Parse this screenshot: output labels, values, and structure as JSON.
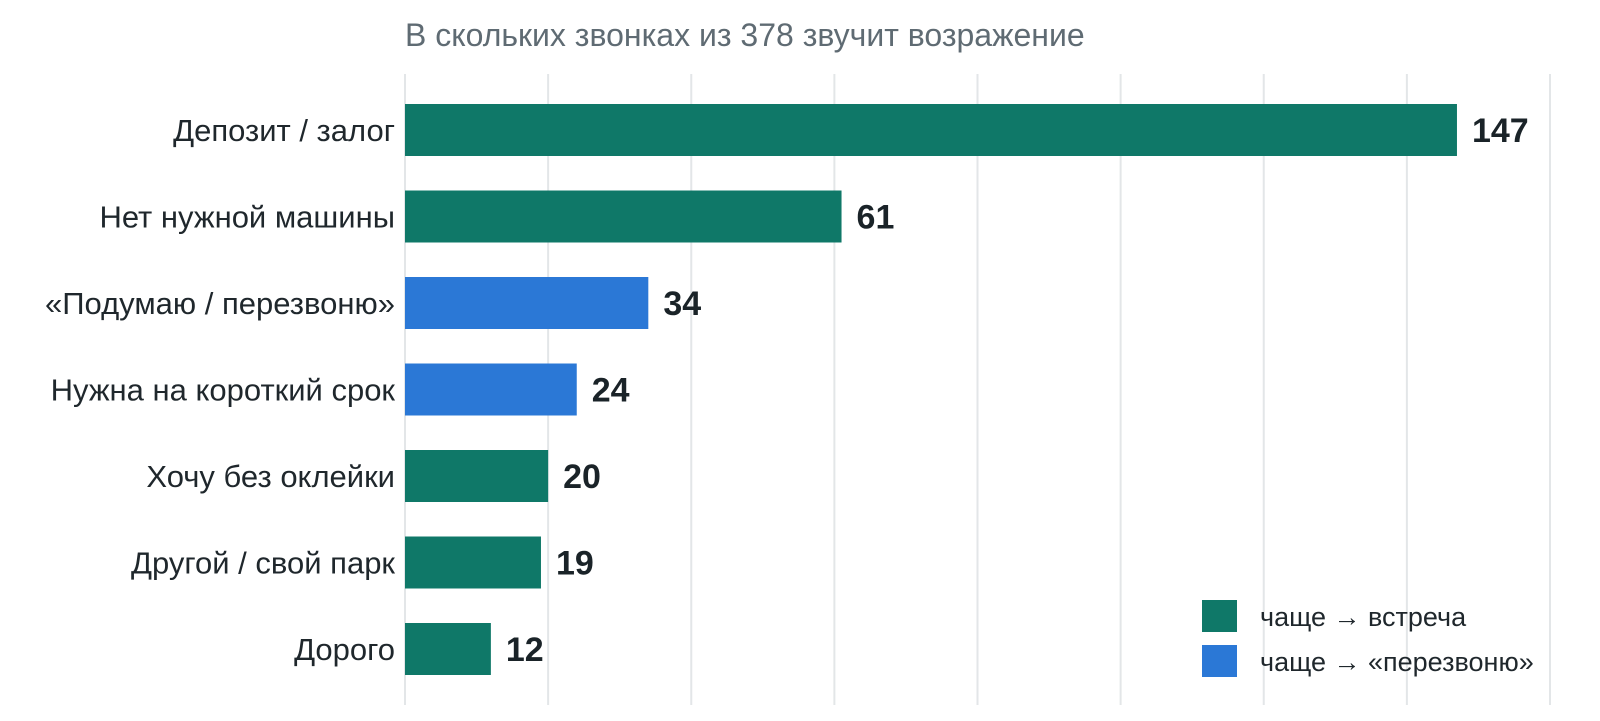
{
  "chart_data": {
    "type": "bar",
    "orientation": "horizontal",
    "title": "В скольких звонках из 378 звучит возражение",
    "xlabel": "",
    "ylabel": "",
    "xlim": [
      0,
      160
    ],
    "grid": true,
    "categories": [
      "Депозит / залог",
      "Нет нужной машины",
      "«Подумаю / перезвоню»",
      "Нужна на короткий срок",
      "Хочу без оклейки",
      "Другой / свой парк",
      "Дорого"
    ],
    "values": [
      147,
      61,
      34,
      24,
      20,
      19,
      12
    ],
    "groups": [
      "meeting",
      "meeting",
      "callback",
      "callback",
      "meeting",
      "meeting",
      "meeting"
    ],
    "legend": {
      "position": "bottom-right",
      "items": [
        {
          "key": "meeting",
          "label": "чаще → встреча",
          "color": "#0f7868"
        },
        {
          "key": "callback",
          "label": "чаще → «перезвоню»",
          "color": "#2b78d6"
        }
      ]
    }
  }
}
